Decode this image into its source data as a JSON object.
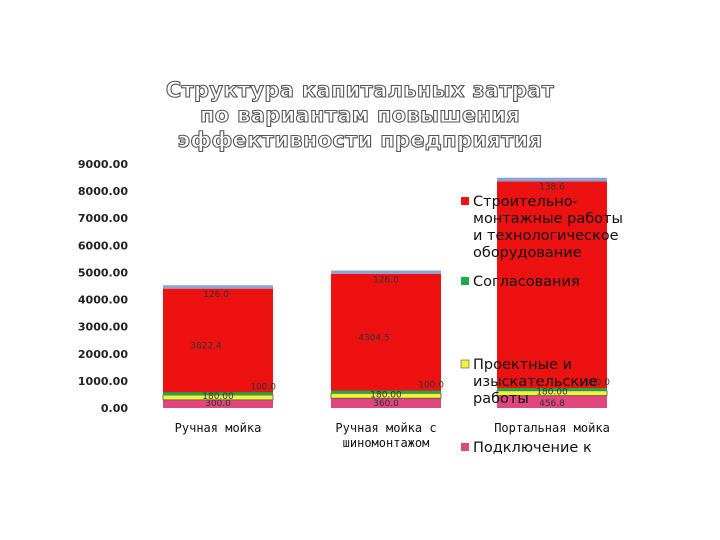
{
  "chart_data": {
    "type": "bar",
    "stacked": true,
    "title": "Структура капитальных затрат по вариантам повышения эффективности предприятия",
    "categories": [
      "Ручная мойка",
      "Ручная мойка с шиномонтажом",
      "Портальная мойка"
    ],
    "ylim": [
      0,
      9000
    ],
    "yticks": [
      "0.00",
      "1000.00",
      "2000.00",
      "3000.00",
      "4000.00",
      "5000.00",
      "6000.00",
      "7000.00",
      "8000.00",
      "9000.00"
    ],
    "grid": false,
    "legend_position": "right",
    "series": [
      {
        "name": "Подключение к",
        "color": "#e0457b",
        "values": [
          300,
          360,
          456.8
        ],
        "labels": [
          "300.0",
          "360.0",
          "456.8"
        ]
      },
      {
        "name": "Проектные и изыскательские работы",
        "color": "#f2f23a",
        "values": [
          180,
          180,
          180
        ],
        "labels": [
          "180.00",
          "180.00",
          "180.00"
        ]
      },
      {
        "name": "Согласования",
        "color": "#1aab4a",
        "values": [
          100,
          100,
          100
        ],
        "labels": [
          "100.0",
          "100.0",
          "100.0"
        ]
      },
      {
        "name": "Строительно-монтажные работы и технологическое оборудование",
        "color": "#ee1111",
        "values": [
          3822.4,
          4304.5,
          7620
        ],
        "labels": [
          "3822.4",
          "4304.5",
          ""
        ]
      },
      {
        "name": "",
        "color": "#8aa4d6",
        "values": [
          126,
          126,
          138.6
        ],
        "labels": [
          "126.0",
          "126.0",
          "138.6"
        ]
      }
    ]
  },
  "legend": [
    {
      "lines": [
        "Строительно-",
        "монтажные работы",
        "и технологическое",
        "оборудование"
      ],
      "color": "#ee1111"
    },
    {
      "lines": [
        "Согласования"
      ],
      "color": "#1aab4a"
    },
    {
      "lines": [
        "Проектные и",
        "изыскательские",
        "работы"
      ],
      "color": "#f2f23a"
    },
    {
      "lines": [
        "Подключение к"
      ],
      "color": "#e0457b"
    }
  ],
  "category_lines": [
    [
      "Ручная мойка"
    ],
    [
      "Ручная мойка с",
      "шиномонтажом"
    ],
    [
      "Портальная мойка"
    ]
  ]
}
